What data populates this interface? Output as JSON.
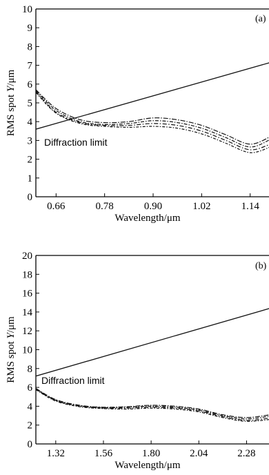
{
  "chart_data": [
    {
      "type": "line",
      "panel_label": "(a)",
      "xlabel": "Wavelength/μm",
      "ylabel_parts": [
        "RMS spot ",
        "Y",
        "/μm"
      ],
      "xlim": [
        0.61,
        1.19
      ],
      "ylim": [
        0,
        10
      ],
      "xticks": [
        0.66,
        0.78,
        0.9,
        1.02,
        1.14
      ],
      "xtick_labels": [
        "0.66",
        "0.78",
        "0.90",
        "1.02",
        "1.14"
      ],
      "yticks": [
        0,
        1,
        2,
        3,
        4,
        5,
        6,
        7,
        8,
        9,
        10
      ],
      "ytick_labels": [
        "0",
        "1",
        "2",
        "3",
        "4",
        "5",
        "6",
        "7",
        "8",
        "9",
        "10"
      ],
      "annotation": "Diffraction limit",
      "series": [
        {
          "style": "solid",
          "x": [
            0.61,
            1.19
          ],
          "y": [
            3.6,
            7.15
          ]
        },
        {
          "style": "dashdot",
          "x": [
            0.61,
            0.66,
            0.72,
            0.78,
            0.84,
            0.9,
            0.96,
            1.02,
            1.08,
            1.14,
            1.19
          ],
          "y": [
            5.7,
            4.7,
            4.1,
            3.95,
            4.0,
            4.2,
            4.1,
            3.8,
            3.3,
            2.8,
            3.2
          ]
        },
        {
          "style": "dashdot",
          "x": [
            0.61,
            0.66,
            0.72,
            0.78,
            0.84,
            0.9,
            0.96,
            1.02,
            1.08,
            1.14,
            1.19
          ],
          "y": [
            5.65,
            4.6,
            4.0,
            3.85,
            3.9,
            4.05,
            3.95,
            3.65,
            3.15,
            2.65,
            3.05
          ]
        },
        {
          "style": "dashdot",
          "x": [
            0.61,
            0.66,
            0.72,
            0.78,
            0.84,
            0.9,
            0.96,
            1.02,
            1.08,
            1.14,
            1.19
          ],
          "y": [
            5.6,
            4.5,
            3.95,
            3.8,
            3.8,
            3.9,
            3.8,
            3.5,
            3.0,
            2.5,
            2.8
          ]
        },
        {
          "style": "dashdot",
          "x": [
            0.61,
            0.66,
            0.72,
            0.78,
            0.84,
            0.9,
            0.96,
            1.02,
            1.08,
            1.14,
            1.19
          ],
          "y": [
            5.55,
            4.45,
            3.9,
            3.75,
            3.7,
            3.75,
            3.65,
            3.35,
            2.85,
            2.35,
            2.65
          ]
        }
      ]
    },
    {
      "type": "line",
      "panel_label": "(b)",
      "xlabel": "Wavelength/μm",
      "ylabel_parts": [
        "RMS spot ",
        "Y",
        "/μm"
      ],
      "xlim": [
        1.22,
        2.4
      ],
      "ylim": [
        0,
        20
      ],
      "xticks": [
        1.32,
        1.56,
        1.8,
        2.04,
        2.28
      ],
      "xtick_labels": [
        "1.32",
        "1.56",
        "1.80",
        "2.04",
        "2.28"
      ],
      "yticks": [
        0,
        2,
        4,
        6,
        8,
        10,
        12,
        14,
        16,
        18,
        20
      ],
      "ytick_labels": [
        "0",
        "2",
        "4",
        "6",
        "8",
        "10",
        "12",
        "14",
        "16",
        "18",
        "20"
      ],
      "annotation": "Diffraction limit",
      "series": [
        {
          "style": "solid",
          "x": [
            1.22,
            2.4
          ],
          "y": [
            7.2,
            14.4
          ]
        },
        {
          "style": "dashdot",
          "x": [
            1.22,
            1.32,
            1.44,
            1.56,
            1.68,
            1.8,
            1.92,
            2.04,
            2.16,
            2.28,
            2.4
          ],
          "y": [
            5.9,
            4.7,
            4.1,
            3.9,
            3.95,
            4.1,
            4.0,
            3.7,
            3.1,
            2.8,
            3.1
          ]
        },
        {
          "style": "dashdot",
          "x": [
            1.22,
            1.32,
            1.44,
            1.56,
            1.68,
            1.8,
            1.92,
            2.04,
            2.16,
            2.28,
            2.4
          ],
          "y": [
            5.85,
            4.65,
            4.05,
            3.85,
            3.9,
            4.0,
            3.9,
            3.6,
            3.0,
            2.65,
            2.95
          ]
        },
        {
          "style": "dashdot",
          "x": [
            1.22,
            1.32,
            1.44,
            1.56,
            1.68,
            1.8,
            1.92,
            2.04,
            2.16,
            2.28,
            2.4
          ],
          "y": [
            5.8,
            4.6,
            4.0,
            3.8,
            3.8,
            3.9,
            3.8,
            3.5,
            2.9,
            2.5,
            2.75
          ]
        },
        {
          "style": "dashdot",
          "x": [
            1.22,
            1.32,
            1.44,
            1.56,
            1.68,
            1.8,
            1.92,
            2.04,
            2.16,
            2.28,
            2.4
          ],
          "y": [
            5.75,
            4.55,
            3.95,
            3.75,
            3.7,
            3.8,
            3.7,
            3.4,
            2.8,
            2.4,
            2.6
          ]
        }
      ]
    }
  ]
}
